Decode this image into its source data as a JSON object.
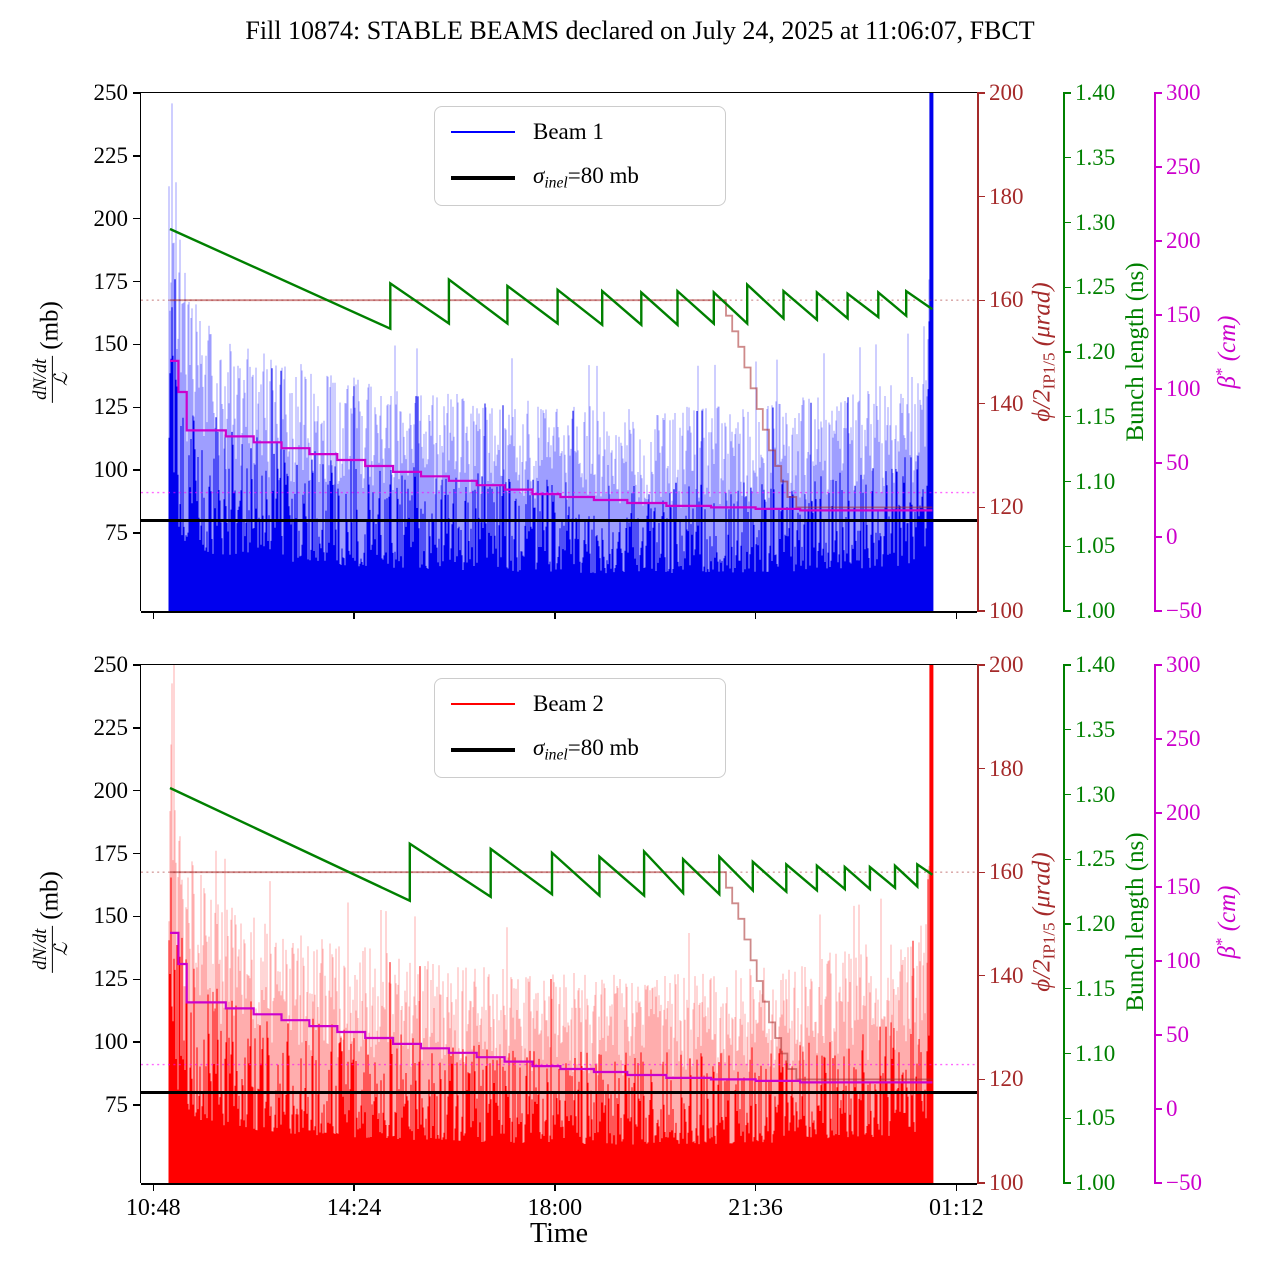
{
  "title": "Fill 10874: STABLE BEAMS declared on July 24, 2025 at 11:06:07, FBCT",
  "xaxis": {
    "label": "Time",
    "xlim": [
      10.58,
      25.57
    ],
    "ticks": [
      {
        "v": 10.8,
        "label": "10:48"
      },
      {
        "v": 14.4,
        "label": "14:24"
      },
      {
        "v": 18.0,
        "label": "18:00"
      },
      {
        "v": 21.6,
        "label": "21:36"
      },
      {
        "v": 25.2,
        "label": "01:12"
      }
    ]
  },
  "yaxes": {
    "rate": {
      "frac_num": "dN/dt",
      "frac_den": "ℒ",
      "unit": "(mb)",
      "ylim": [
        44,
        250
      ],
      "color": "#000000",
      "ticks": [
        {
          "v": 250,
          "label": "250"
        },
        {
          "v": 225,
          "label": "225"
        },
        {
          "v": 200,
          "label": "200"
        },
        {
          "v": 175,
          "label": "175"
        },
        {
          "v": 150,
          "label": "150"
        },
        {
          "v": 125,
          "label": "125"
        },
        {
          "v": 100,
          "label": "100"
        },
        {
          "v": 75,
          "label": "75"
        }
      ]
    },
    "crossing": {
      "label_main": "ϕ/2",
      "label_sub": "IP1/5",
      "label_unit": "(μrad)",
      "ylim": [
        100,
        200
      ],
      "color": "#a52a2a",
      "ticks": [
        {
          "v": 200,
          "label": "200"
        },
        {
          "v": 180,
          "label": "180"
        },
        {
          "v": 160,
          "label": "160"
        },
        {
          "v": 140,
          "label": "140"
        },
        {
          "v": 120,
          "label": "120"
        },
        {
          "v": 100,
          "label": "100"
        }
      ]
    },
    "bunch": {
      "label": "Bunch length (ns)",
      "ylim": [
        1.0,
        1.4
      ],
      "color": "#008000",
      "ticks": [
        {
          "v": 1.4,
          "label": "1.40"
        },
        {
          "v": 1.35,
          "label": "1.35"
        },
        {
          "v": 1.3,
          "label": "1.30"
        },
        {
          "v": 1.25,
          "label": "1.25"
        },
        {
          "v": 1.2,
          "label": "1.20"
        },
        {
          "v": 1.15,
          "label": "1.15"
        },
        {
          "v": 1.1,
          "label": "1.10"
        },
        {
          "v": 1.05,
          "label": "1.05"
        },
        {
          "v": 1.0,
          "label": "1.00"
        }
      ]
    },
    "beta": {
      "label_main": "β",
      "label_sup": "*",
      "label_unit": "(cm)",
      "ylim": [
        -50,
        300
      ],
      "color": "#cc00cc",
      "ticks": [
        {
          "v": 300,
          "label": "300"
        },
        {
          "v": 250,
          "label": "250"
        },
        {
          "v": 200,
          "label": "200"
        },
        {
          "v": 150,
          "label": "150"
        },
        {
          "v": 100,
          "label": "100"
        },
        {
          "v": 50,
          "label": "50"
        },
        {
          "v": 0,
          "label": "0"
        },
        {
          "v": -50,
          "label": "−50"
        }
      ]
    }
  },
  "chart_data": [
    {
      "type": "line",
      "panel": "Beam 1",
      "x_unit": "time of day in hours (values > 24 are after midnight)",
      "data_range_hours": [
        11.08,
        24.77
      ],
      "legend": {
        "beam_label": "Beam 1",
        "beam_color": "#0000ff",
        "sigma_sym": "σ",
        "sigma_sub": "inel",
        "sigma_rest": "=80 mb",
        "sigma_color": "#000000"
      },
      "series": {
        "rate_noise": {
          "name": "Beam 1 (dN/dt)/L",
          "axis": "rate",
          "color": "#0000ee",
          "light_color": "rgba(0,0,255,0.38)",
          "min_mb": 45,
          "seed": 1234567,
          "env_t": [
            11.1,
            11.14,
            11.18,
            11.25,
            11.35,
            11.5,
            11.75,
            12.0,
            12.5,
            13.0,
            14.0,
            15.0,
            16.0,
            17.0,
            18.0,
            19.0,
            20.0,
            21.0,
            22.0,
            23.0,
            24.0,
            24.4,
            24.6,
            24.68,
            24.7,
            24.77
          ],
          "env_light": [
            250,
            250,
            235,
            200,
            182,
            170,
            160,
            153,
            150,
            145,
            139,
            134,
            131,
            129,
            127,
            125,
            125,
            126,
            128,
            131,
            135,
            139,
            141,
            142,
            250,
            250
          ],
          "env_dark": [
            250,
            250,
            205,
            160,
            142,
            132,
            124,
            120,
            116,
            112,
            107,
            103,
            100,
            98,
            96,
            95,
            95,
            96,
            97,
            100,
            104,
            107,
            109,
            110,
            250,
            250
          ]
        },
        "sigma_line": {
          "name": "σ_inel = 80 mb",
          "axis": "rate",
          "value": 80,
          "color": "#000000"
        },
        "crossing_angle": {
          "name": "ϕ/2 IP1/5",
          "axis": "crossing",
          "style": "steps",
          "color": "rgba(165,42,42,0.55)",
          "ref_dotted": 160,
          "ref_color": "rgba(165,42,42,0.45)",
          "t": [
            11.1,
            20.95,
            21.07,
            21.18,
            21.29,
            21.4,
            21.51,
            21.62,
            21.73,
            21.84,
            21.95,
            22.06,
            22.17,
            22.33,
            24.77
          ],
          "v": [
            160,
            160,
            157,
            154,
            151,
            147,
            143,
            139,
            135,
            131,
            128,
            125,
            122,
            120,
            120
          ]
        },
        "bunch_length": {
          "name": "Bunch length Beam 1",
          "axis": "bunch",
          "color": "#008000",
          "t": [
            11.1,
            15.05,
            15.05,
            16.1,
            16.1,
            17.15,
            17.15,
            18.05,
            18.05,
            18.85,
            18.85,
            19.55,
            19.55,
            20.2,
            20.2,
            20.85,
            20.85,
            21.45,
            21.45,
            22.1,
            22.1,
            22.7,
            22.7,
            23.25,
            23.25,
            23.8,
            23.8,
            24.3,
            24.3,
            24.77
          ],
          "v": [
            1.295,
            1.218,
            1.253,
            1.222,
            1.256,
            1.222,
            1.251,
            1.222,
            1.248,
            1.221,
            1.247,
            1.221,
            1.246,
            1.221,
            1.247,
            1.222,
            1.246,
            1.222,
            1.252,
            1.226,
            1.247,
            1.225,
            1.246,
            1.226,
            1.245,
            1.227,
            1.246,
            1.228,
            1.247,
            1.233
          ]
        },
        "beta_star": {
          "name": "β* IP1/5",
          "axis": "beta",
          "style": "steps",
          "color": "#cc00cc",
          "ref_dotted": 30,
          "ref_color": "rgba(255,0,255,0.6)",
          "t": [
            11.1,
            11.25,
            11.4,
            12.1,
            12.6,
            13.1,
            13.6,
            14.1,
            14.6,
            15.1,
            15.6,
            16.1,
            16.6,
            17.1,
            17.6,
            18.1,
            18.7,
            19.3,
            20.0,
            20.8,
            21.6,
            22.4,
            24.77
          ],
          "v": [
            119,
            98,
            72,
            68,
            64,
            60,
            56,
            52,
            48,
            44,
            41,
            38,
            35,
            32,
            29,
            27,
            25,
            23,
            21,
            20,
            19,
            18,
            18
          ]
        }
      }
    },
    {
      "type": "line",
      "panel": "Beam 2",
      "x_unit": "time of day in hours (values > 24 are after midnight)",
      "data_range_hours": [
        11.08,
        24.77
      ],
      "legend": {
        "beam_label": "Beam 2",
        "beam_color": "#ff0000",
        "sigma_sym": "σ",
        "sigma_sub": "inel",
        "sigma_rest": "=80 mb",
        "sigma_color": "#000000"
      },
      "series": {
        "rate_noise": {
          "name": "Beam 2 (dN/dt)/L",
          "axis": "rate",
          "color": "#ff0000",
          "light_color": "rgba(255,0,0,0.32)",
          "min_mb": 45,
          "seed": 987654,
          "env_t": [
            11.1,
            11.14,
            11.18,
            11.25,
            11.35,
            11.5,
            11.75,
            12.0,
            12.5,
            13.0,
            14.0,
            15.0,
            16.0,
            17.0,
            18.0,
            19.0,
            20.0,
            21.0,
            22.0,
            23.0,
            24.0,
            24.4,
            24.6,
            24.68,
            24.7,
            24.77
          ],
          "env_light": [
            250,
            250,
            240,
            205,
            188,
            175,
            165,
            158,
            152,
            147,
            141,
            136,
            132,
            130,
            128,
            127,
            127,
            128,
            131,
            136,
            142,
            148,
            152,
            153,
            250,
            250
          ],
          "env_dark": [
            250,
            250,
            210,
            165,
            146,
            135,
            127,
            122,
            118,
            113,
            108,
            104,
            101,
            99,
            97,
            96,
            96,
            97,
            99,
            103,
            108,
            112,
            115,
            116,
            250,
            250
          ]
        },
        "sigma_line": {
          "name": "σ_inel = 80 mb",
          "axis": "rate",
          "value": 80,
          "color": "#000000"
        },
        "crossing_angle": {
          "name": "ϕ/2 IP1/5",
          "axis": "crossing",
          "style": "steps",
          "color": "rgba(165,42,42,0.55)",
          "ref_dotted": 160,
          "ref_color": "rgba(165,42,42,0.45)",
          "t": [
            11.1,
            20.95,
            21.07,
            21.18,
            21.29,
            21.4,
            21.51,
            21.62,
            21.73,
            21.84,
            21.95,
            22.06,
            22.17,
            22.33,
            24.77
          ],
          "v": [
            160,
            160,
            157,
            154,
            151,
            147,
            143,
            139,
            135,
            131,
            128,
            125,
            122,
            120,
            120
          ]
        },
        "bunch_length": {
          "name": "Bunch length Beam 2",
          "axis": "bunch",
          "color": "#008000",
          "t": [
            11.1,
            15.4,
            15.4,
            16.85,
            16.85,
            17.95,
            17.95,
            18.8,
            18.8,
            19.6,
            19.6,
            20.3,
            20.3,
            20.95,
            20.95,
            21.55,
            21.55,
            22.15,
            22.15,
            22.7,
            22.7,
            23.2,
            23.2,
            23.65,
            23.65,
            24.1,
            24.1,
            24.5,
            24.5,
            24.77
          ],
          "v": [
            1.305,
            1.218,
            1.262,
            1.221,
            1.258,
            1.223,
            1.255,
            1.222,
            1.252,
            1.222,
            1.256,
            1.224,
            1.25,
            1.223,
            1.252,
            1.226,
            1.248,
            1.225,
            1.246,
            1.226,
            1.245,
            1.227,
            1.244,
            1.227,
            1.244,
            1.228,
            1.245,
            1.229,
            1.246,
            1.238
          ]
        },
        "beta_star": {
          "name": "β* IP1/5",
          "axis": "beta",
          "style": "steps",
          "color": "#cc00cc",
          "ref_dotted": 30,
          "ref_color": "rgba(255,0,255,0.6)",
          "t": [
            11.1,
            11.25,
            11.4,
            12.1,
            12.6,
            13.1,
            13.6,
            14.1,
            14.6,
            15.1,
            15.6,
            16.1,
            16.6,
            17.1,
            17.6,
            18.1,
            18.7,
            19.3,
            20.0,
            20.8,
            21.6,
            22.4,
            24.77
          ],
          "v": [
            119,
            98,
            72,
            68,
            64,
            60,
            56,
            52,
            48,
            44,
            41,
            38,
            35,
            32,
            29,
            27,
            25,
            23,
            21,
            20,
            19,
            18,
            18
          ]
        }
      }
    }
  ]
}
